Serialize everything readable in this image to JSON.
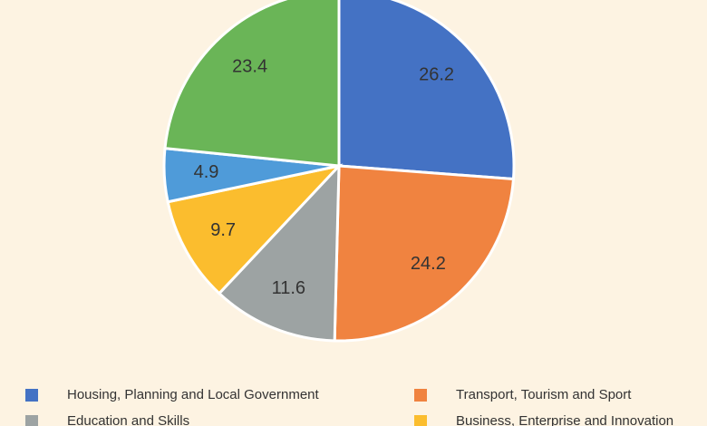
{
  "chart_data": {
    "type": "pie",
    "categories": [
      "Housing, Planning and Local Government",
      "Transport, Tourism and Sport",
      "Education and Skills",
      "Business, Enterprise and Innovation",
      null,
      null
    ],
    "values": [
      26.2,
      24.2,
      11.6,
      9.7,
      4.9,
      23.4
    ],
    "colors": [
      "#4472c4",
      "#f08340",
      "#9da3a3",
      "#fbbd2e",
      "#4f9bd9",
      "#6ab557"
    ],
    "legend": "bottom"
  }
}
